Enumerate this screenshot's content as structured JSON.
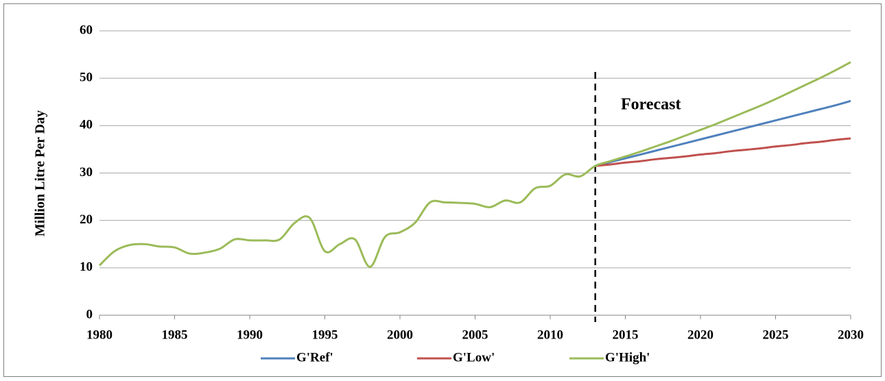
{
  "chart_data": {
    "type": "line",
    "y_label": "Million Litre Per Day",
    "annotation": "Forecast",
    "forecast_start": 2013,
    "x": [
      1980,
      1981,
      1982,
      1983,
      1984,
      1985,
      1986,
      1987,
      1988,
      1989,
      1990,
      1991,
      1992,
      1993,
      1994,
      1995,
      1996,
      1997,
      1998,
      1999,
      2000,
      2001,
      2002,
      2003,
      2004,
      2005,
      2006,
      2007,
      2008,
      2009,
      2010,
      2011,
      2012,
      2013,
      2014,
      2015,
      2016,
      2017,
      2018,
      2019,
      2020,
      2021,
      2022,
      2023,
      2024,
      2025,
      2026,
      2027,
      2028,
      2029,
      2030
    ],
    "series": [
      {
        "name": "G'Ref'",
        "color": "#4f81bd",
        "values": [
          null,
          null,
          null,
          null,
          null,
          null,
          null,
          null,
          null,
          null,
          null,
          null,
          null,
          null,
          null,
          null,
          null,
          null,
          null,
          null,
          null,
          null,
          null,
          null,
          null,
          null,
          null,
          null,
          null,
          null,
          null,
          null,
          null,
          31.5,
          32.3,
          33.1,
          33.9,
          34.7,
          35.5,
          36.3,
          37.1,
          37.9,
          38.7,
          39.5,
          40.3,
          41.1,
          41.9,
          42.7,
          43.5,
          44.3,
          45.2
        ]
      },
      {
        "name": "G'Low'",
        "color": "#c0504d",
        "values": [
          null,
          null,
          null,
          null,
          null,
          null,
          null,
          null,
          null,
          null,
          null,
          null,
          null,
          null,
          null,
          null,
          null,
          null,
          null,
          null,
          null,
          null,
          null,
          null,
          null,
          null,
          null,
          null,
          null,
          null,
          null,
          null,
          null,
          31.5,
          31.8,
          32.2,
          32.5,
          32.9,
          33.2,
          33.5,
          33.9,
          34.2,
          34.6,
          34.9,
          35.2,
          35.6,
          35.9,
          36.3,
          36.6,
          37.0,
          37.3
        ]
      },
      {
        "name": "G'High'",
        "color": "#9bbb59",
        "values": [
          10.5,
          13.5,
          14.8,
          15.0,
          14.5,
          14.3,
          13.0,
          13.2,
          14.0,
          16.0,
          15.8,
          15.8,
          16.0,
          19.5,
          20.5,
          13.5,
          15.0,
          16.0,
          10.2,
          16.5,
          17.5,
          19.5,
          23.8,
          23.8,
          23.7,
          23.5,
          22.8,
          24.2,
          23.8,
          26.8,
          27.3,
          29.7,
          29.3,
          31.5,
          32.5,
          33.5,
          34.5,
          35.6,
          36.7,
          37.9,
          39.1,
          40.3,
          41.6,
          42.9,
          44.2,
          45.6,
          47.1,
          48.6,
          50.1,
          51.7,
          53.4
        ]
      }
    ],
    "xlim": [
      1980,
      2030
    ],
    "xticks": [
      1980,
      1985,
      1990,
      1995,
      2000,
      2005,
      2010,
      2015,
      2020,
      2025,
      2030
    ],
    "ylim": [
      0,
      60
    ],
    "yticks": [
      0,
      10,
      20,
      30,
      40,
      50,
      60
    ],
    "grid": true
  }
}
